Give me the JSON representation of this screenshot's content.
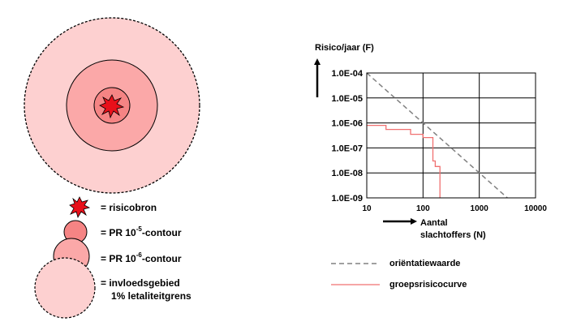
{
  "legend": {
    "source_label": "= risicobron",
    "pr5_prefix": "= PR 10",
    "pr5_exp": "-5",
    "pr5_suffix": "-contour",
    "pr6_prefix": "= PR 10",
    "pr6_exp": "-6",
    "pr6_suffix": "-contour",
    "influence_line1": "= invloedsgebied",
    "influence_line2": "1% letaliteitgrens"
  },
  "colors": {
    "pale": "#fdd0d0",
    "mid": "#fba8a8",
    "dark": "#f58484",
    "source": "#e8101a",
    "guide_line": "#808080",
    "curve_line": "#f07070"
  },
  "chart_data": {
    "type": "line",
    "ylabel": "Risico/jaar (F)",
    "xlabel_line1": "Aantal",
    "xlabel_line2": "slachtoffers (N)",
    "x_scale": "log",
    "y_scale": "log",
    "xlim": [
      10,
      10000
    ],
    "ylim": [
      1e-09,
      0.0001
    ],
    "x_ticks": [
      {
        "value": 10,
        "label": "10"
      },
      {
        "value": 100,
        "label": "100"
      },
      {
        "value": 1000,
        "label": "1000"
      },
      {
        "value": 10000,
        "label": "10000"
      }
    ],
    "y_ticks": [
      {
        "value": 0.0001,
        "label": "1.0E-04"
      },
      {
        "value": 1e-05,
        "label": "1.0E-05"
      },
      {
        "value": 1e-06,
        "label": "1.0E-06"
      },
      {
        "value": 1e-07,
        "label": "1.0E-07"
      },
      {
        "value": 1e-08,
        "label": "1.0E-08"
      },
      {
        "value": 1e-09,
        "label": "1.0E-09"
      }
    ],
    "grid": true,
    "series": [
      {
        "name": "oriëntatiewaarde",
        "style": "dashed",
        "color": "#808080",
        "x": [
          10,
          1000,
          3162
        ],
        "y": [
          0.0001,
          1e-08,
          1e-09
        ]
      },
      {
        "name": "groepsrisicocurve",
        "style": "step",
        "color": "#f07070",
        "x": [
          10,
          22,
          22,
          60,
          60,
          100,
          100,
          150,
          150,
          165,
          165,
          200,
          200
        ],
        "y": [
          8e-07,
          8e-07,
          5.5e-07,
          5.5e-07,
          3.5e-07,
          3.5e-07,
          2.6e-07,
          2.6e-07,
          3e-08,
          3e-08,
          1.8e-08,
          1.8e-08,
          1e-09
        ]
      }
    ]
  }
}
